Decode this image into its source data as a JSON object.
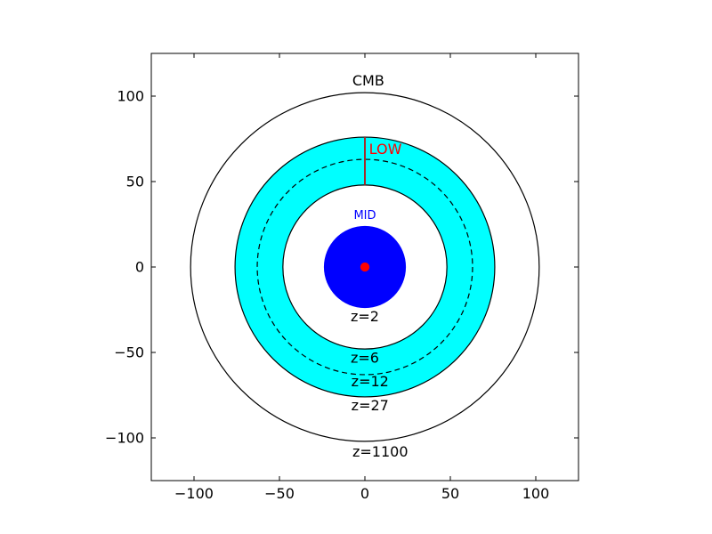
{
  "chart_data": {
    "type": "scatter",
    "title": "",
    "xlabel": "",
    "ylabel": "",
    "xlim": [
      -125,
      125
    ],
    "ylim": [
      -125,
      125
    ],
    "grid": false,
    "x_ticks": [
      -100,
      -50,
      0,
      50,
      100
    ],
    "y_ticks": [
      -100,
      -50,
      0,
      50,
      100
    ],
    "x_tick_labels": [
      "−100",
      "−50",
      "0",
      "50",
      "100"
    ],
    "y_tick_labels": [
      "−100",
      "−50",
      "0",
      "50",
      "100"
    ],
    "circles": [
      {
        "name": "CMB",
        "radius": 102,
        "fill": "none",
        "stroke": "#000000",
        "dashed": false
      },
      {
        "name": "outer shell",
        "radius": 76,
        "fill": "#00ffff",
        "stroke": "#000000",
        "dashed": false
      },
      {
        "name": "z=12 shell",
        "radius": 63,
        "fill": "none",
        "stroke": "#000000",
        "dashed": true
      },
      {
        "name": "inner shell",
        "radius": 48,
        "fill": "#ffffff",
        "stroke": "#000000",
        "dashed": false
      },
      {
        "name": "MID disk",
        "radius": 24,
        "fill": "#0000ff",
        "stroke": "none",
        "dashed": false
      },
      {
        "name": "center point",
        "radius": 2.7,
        "fill": "#ff0000",
        "stroke": "none",
        "dashed": false
      }
    ],
    "segment": {
      "x": 0,
      "y_from": 48,
      "y_to": 76,
      "color": "#a52a2a"
    },
    "annotations": [
      {
        "text": "CMB",
        "x": 2,
        "y": 109,
        "color": "#000000",
        "size": "normal"
      },
      {
        "text": "LOW",
        "x": 12,
        "y": 69,
        "color": "#ff0000",
        "size": "normal"
      },
      {
        "text": "MID",
        "x": 0,
        "y": 30,
        "color": "#0000ff",
        "size": "small"
      },
      {
        "text": "z=2",
        "x": 0,
        "y": -29,
        "color": "#000000",
        "size": "normal"
      },
      {
        "text": "z=6",
        "x": 0,
        "y": -53,
        "color": "#000000",
        "size": "normal"
      },
      {
        "text": "z=12",
        "x": 3,
        "y": -67,
        "color": "#000000",
        "size": "normal"
      },
      {
        "text": "z=27",
        "x": 3,
        "y": -81,
        "color": "#000000",
        "size": "normal"
      },
      {
        "text": "z=1100",
        "x": 9,
        "y": -108,
        "color": "#000000",
        "size": "normal"
      }
    ],
    "colors": {
      "shell_fill": "#00ffff",
      "mid_fill": "#0000ff",
      "center_point": "#ff0000",
      "low_label": "#ff0000",
      "mid_label": "#0000ff",
      "segment": "#a52a2a"
    }
  }
}
